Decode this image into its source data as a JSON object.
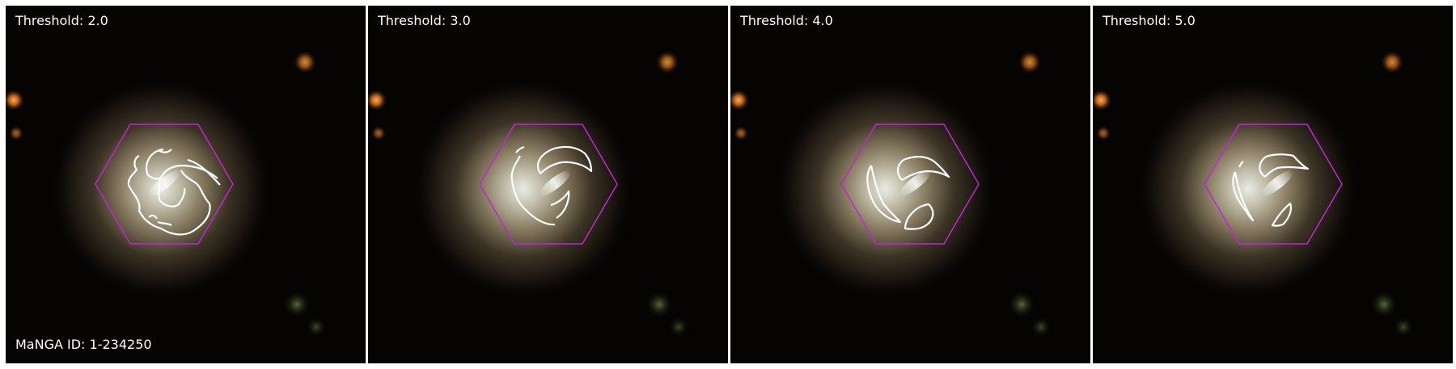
{
  "panels": [
    {
      "threshold_label": "Threshold: 2.0"
    },
    {
      "threshold_label": "Threshold: 3.0"
    },
    {
      "threshold_label": "Threshold: 4.0"
    },
    {
      "threshold_label": "Threshold: 5.0"
    }
  ],
  "manga_id_label": "MaNGA ID: 1-234250",
  "colors": {
    "background": "#050403",
    "hexagon_outline": "#c026d3",
    "contour": "#ffffff",
    "text": "#ffffff",
    "separator": "#ffffff"
  }
}
